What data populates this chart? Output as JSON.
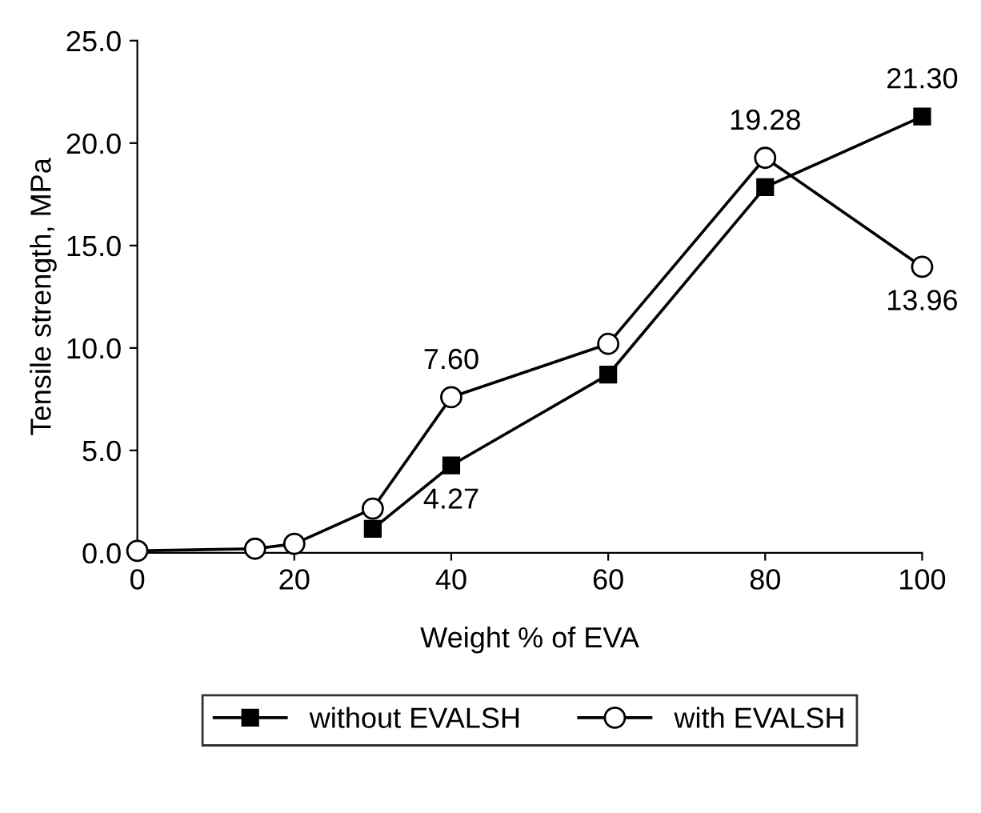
{
  "chart_data": {
    "type": "line",
    "xlabel": "Weight % of EVA",
    "ylabel": "Tensile strength, MPa",
    "x": [
      0,
      15,
      20,
      30,
      40,
      60,
      80,
      100
    ],
    "series": [
      {
        "name": "without EVALSH",
        "color": "#000000",
        "marker": "square",
        "values": [
          null,
          null,
          null,
          1.17,
          4.27,
          8.7,
          17.85,
          21.3
        ],
        "value_labels": [
          null,
          null,
          null,
          null,
          "4.27",
          null,
          null,
          "21.30"
        ]
      },
      {
        "name": "with EVALSH",
        "color": "#000000",
        "marker": "circle",
        "values": [
          0.1,
          0.2,
          0.44,
          2.16,
          7.6,
          10.2,
          19.28,
          13.96
        ],
        "value_labels": [
          null,
          null,
          null,
          null,
          "7.60",
          null,
          "19.28",
          "13.96"
        ]
      }
    ],
    "xlim": [
      0,
      100
    ],
    "xticks": [
      0,
      20,
      40,
      60,
      80,
      100
    ],
    "ylim": [
      0,
      25
    ],
    "yticks": [
      {
        "value": 0,
        "label": "0.0"
      },
      {
        "value": 5,
        "label": "5.0"
      },
      {
        "value": 10,
        "label": "10.0"
      },
      {
        "value": 15,
        "label": "15.0"
      },
      {
        "value": 20,
        "label": "20.0"
      },
      {
        "value": 25,
        "label": "25.0"
      }
    ],
    "grid": false,
    "legend": "bottom",
    "line_style": "solid"
  }
}
